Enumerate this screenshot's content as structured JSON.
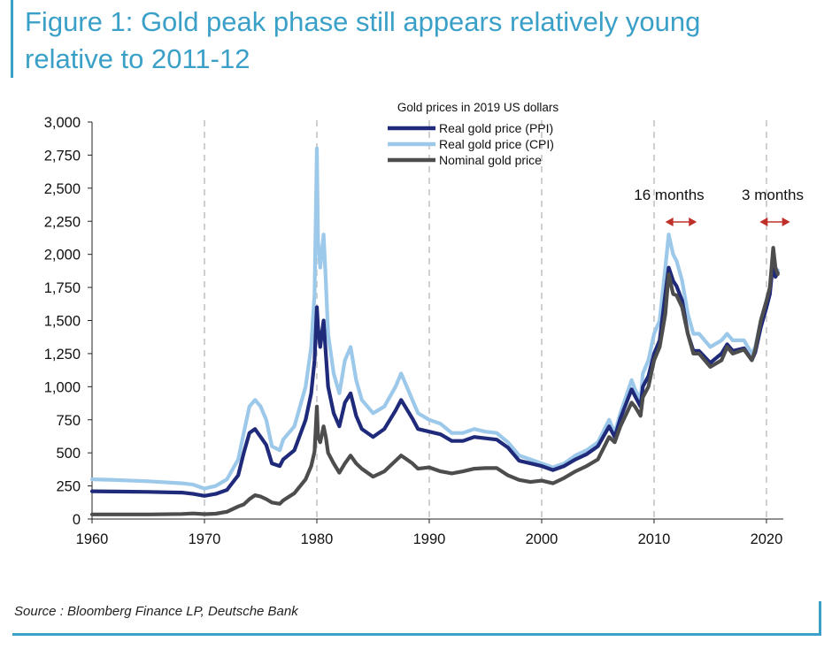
{
  "title_line1": "Figure 1: Gold peak phase still appears relatively young",
  "title_line2": "relative to 2011-12",
  "source": "Source : Bloomberg Finance LP, Deutsche Bank",
  "chart_data": {
    "type": "line",
    "title": "Gold prices in 2019 US dollars",
    "xlabel": "",
    "ylabel": "",
    "xlim": [
      1960,
      2021.5
    ],
    "ylim": [
      0,
      3000
    ],
    "x_ticks": [
      "1960",
      "1970",
      "1980",
      "1990",
      "2000",
      "2010",
      "2020"
    ],
    "y_ticks": [
      "0",
      "250",
      "500",
      "750",
      "1,000",
      "1,250",
      "1,500",
      "1,750",
      "2,000",
      "2,250",
      "2,500",
      "2,750",
      "3,000"
    ],
    "grid": "vertical dashed lines at decades",
    "legend_position": "top-center",
    "annotations": [
      "16 months",
      "3 months"
    ],
    "colors": {
      "ppi": "#1f2a7a",
      "cpi": "#9cc8ea",
      "nominal": "#4d4d4d",
      "annotation_arrow": "#c0302a",
      "title": "#3aa0c8"
    },
    "series": [
      {
        "name": "Real gold price (CPI)",
        "x": [
          1960,
          1962,
          1965,
          1968,
          1969,
          1970,
          1971,
          1972,
          1973,
          1973.5,
          1974,
          1974.5,
          1975,
          1975.5,
          1976,
          1976.7,
          1977,
          1978,
          1979,
          1979.5,
          1979.8,
          1980.0,
          1980.1,
          1980.3,
          1980.6,
          1980.8,
          1981,
          1981.5,
          1982,
          1982.5,
          1983,
          1983.5,
          1984,
          1985,
          1986,
          1987,
          1987.5,
          1988,
          1988.5,
          1989,
          1990,
          1991,
          1992,
          1993,
          1994,
          1995,
          1996,
          1997,
          1998,
          1999,
          2000,
          2001,
          2002,
          2003,
          2004,
          2005,
          2006,
          2006.5,
          2007,
          2008,
          2008.3,
          2008.8,
          2009,
          2009.5,
          2010,
          2010.5,
          2011,
          2011.3,
          2011.7,
          2012,
          2012.5,
          2013,
          2013.5,
          2014,
          2015,
          2016,
          2016.5,
          2017,
          2018,
          2018.7,
          2019,
          2019.5,
          2020,
          2020.3,
          2020.6,
          2020.8,
          2021
        ],
        "y": [
          300,
          295,
          285,
          270,
          260,
          230,
          250,
          300,
          450,
          650,
          850,
          900,
          850,
          750,
          550,
          520,
          600,
          700,
          1000,
          1300,
          1700,
          2800,
          2100,
          1900,
          2150,
          1800,
          1400,
          1100,
          950,
          1200,
          1300,
          1050,
          900,
          800,
          850,
          1000,
          1100,
          1000,
          900,
          800,
          750,
          720,
          650,
          650,
          680,
          660,
          650,
          580,
          480,
          450,
          420,
          390,
          420,
          480,
          520,
          580,
          750,
          650,
          800,
          1050,
          980,
          900,
          1100,
          1200,
          1400,
          1500,
          1900,
          2150,
          2000,
          1950,
          1800,
          1550,
          1400,
          1400,
          1300,
          1350,
          1400,
          1350,
          1350,
          1250,
          1300,
          1500,
          1650,
          1750,
          1950,
          1850,
          1880
        ]
      },
      {
        "name": "Real gold price (PPI)",
        "x": [
          1960,
          1962,
          1965,
          1968,
          1969,
          1970,
          1971,
          1972,
          1973,
          1973.5,
          1974,
          1974.5,
          1975,
          1975.5,
          1976,
          1976.7,
          1977,
          1978,
          1979,
          1979.5,
          1979.8,
          1980.0,
          1980.1,
          1980.3,
          1980.6,
          1980.8,
          1981,
          1981.5,
          1982,
          1982.5,
          1983,
          1983.5,
          1984,
          1985,
          1986,
          1987,
          1987.5,
          1988,
          1988.5,
          1989,
          1990,
          1991,
          1992,
          1993,
          1994,
          1995,
          1996,
          1997,
          1998,
          1999,
          2000,
          2001,
          2002,
          2003,
          2004,
          2005,
          2006,
          2006.5,
          2007,
          2008,
          2008.3,
          2008.8,
          2009,
          2009.5,
          2010,
          2010.5,
          2011,
          2011.3,
          2011.7,
          2012,
          2012.5,
          2013,
          2013.5,
          2014,
          2015,
          2016,
          2016.5,
          2017,
          2018,
          2018.7,
          2019,
          2019.5,
          2020,
          2020.3,
          2020.6,
          2020.8,
          2021
        ],
        "y": [
          210,
          208,
          205,
          200,
          190,
          175,
          190,
          220,
          330,
          500,
          650,
          680,
          620,
          560,
          420,
          400,
          450,
          520,
          750,
          950,
          1200,
          1600,
          1450,
          1300,
          1500,
          1250,
          1000,
          800,
          700,
          880,
          950,
          780,
          680,
          620,
          680,
          820,
          900,
          830,
          760,
          680,
          660,
          640,
          590,
          590,
          620,
          610,
          600,
          540,
          440,
          420,
          400,
          370,
          400,
          450,
          490,
          550,
          700,
          620,
          760,
          980,
          930,
          850,
          1000,
          1080,
          1250,
          1350,
          1700,
          1900,
          1800,
          1760,
          1650,
          1400,
          1270,
          1270,
          1180,
          1250,
          1320,
          1270,
          1290,
          1200,
          1260,
          1450,
          1600,
          1700,
          1950,
          1830,
          1860
        ]
      },
      {
        "name": "Nominal gold price",
        "x": [
          1960,
          1965,
          1968,
          1969,
          1970,
          1971,
          1972,
          1973,
          1973.5,
          1974,
          1974.5,
          1975,
          1975.5,
          1976,
          1976.7,
          1977,
          1978,
          1979,
          1979.5,
          1979.8,
          1980.0,
          1980.1,
          1980.3,
          1980.6,
          1980.8,
          1981,
          1981.5,
          1982,
          1982.5,
          1983,
          1983.5,
          1984,
          1985,
          1986,
          1987,
          1987.5,
          1988,
          1988.5,
          1989,
          1990,
          1991,
          1992,
          1993,
          1994,
          1995,
          1996,
          1997,
          1998,
          1999,
          2000,
          2001,
          2002,
          2003,
          2004,
          2005,
          2006,
          2006.5,
          2007,
          2008,
          2008.3,
          2008.8,
          2009,
          2009.5,
          2010,
          2010.5,
          2011,
          2011.3,
          2011.7,
          2012,
          2012.5,
          2013,
          2013.5,
          2014,
          2015,
          2016,
          2016.5,
          2017,
          2018,
          2018.7,
          2019,
          2019.5,
          2020,
          2020.3,
          2020.6,
          2020.8,
          2021
        ],
        "y": [
          35,
          35,
          38,
          42,
          37,
          40,
          55,
          95,
          110,
          150,
          180,
          170,
          150,
          125,
          115,
          140,
          195,
          300,
          400,
          510,
          850,
          620,
          580,
          700,
          620,
          500,
          420,
          350,
          420,
          480,
          420,
          380,
          320,
          360,
          440,
          480,
          450,
          420,
          380,
          390,
          360,
          345,
          360,
          380,
          385,
          385,
          330,
          295,
          280,
          290,
          270,
          310,
          360,
          400,
          450,
          620,
          580,
          700,
          880,
          850,
          780,
          920,
          1000,
          1200,
          1300,
          1550,
          1850,
          1700,
          1690,
          1600,
          1400,
          1250,
          1250,
          1150,
          1200,
          1300,
          1250,
          1280,
          1200,
          1280,
          1500,
          1650,
          1750,
          2050,
          1900,
          1850
        ]
      }
    ]
  }
}
